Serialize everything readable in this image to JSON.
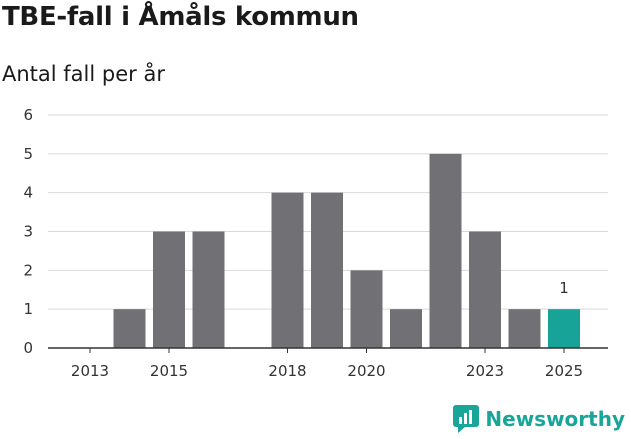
{
  "chart_data": {
    "type": "bar",
    "title": "TBE-fall i Åmåls kommun",
    "subtitle": "Antal fall per år",
    "x": [
      2013,
      2014,
      2015,
      2016,
      2017,
      2018,
      2019,
      2020,
      2021,
      2022,
      2023,
      2024,
      2025
    ],
    "values": [
      0,
      1,
      3,
      3,
      0,
      4,
      4,
      2,
      1,
      5,
      3,
      1,
      1
    ],
    "x_tick_labels": [
      "2013",
      "2015",
      "2018",
      "2020",
      "2023",
      "2025"
    ],
    "ylim": [
      0,
      6
    ],
    "y_ticks": [
      0,
      1,
      2,
      3,
      4,
      5,
      6
    ],
    "grid": true,
    "colors": {
      "bar": "#717075",
      "highlight": "#17a398"
    },
    "highlight_year": 2025,
    "data_labels": [
      {
        "x": 2025,
        "text": "1"
      }
    ]
  },
  "brand": {
    "name": "Newsworthy",
    "icon": "newsworthy-logo-icon"
  }
}
